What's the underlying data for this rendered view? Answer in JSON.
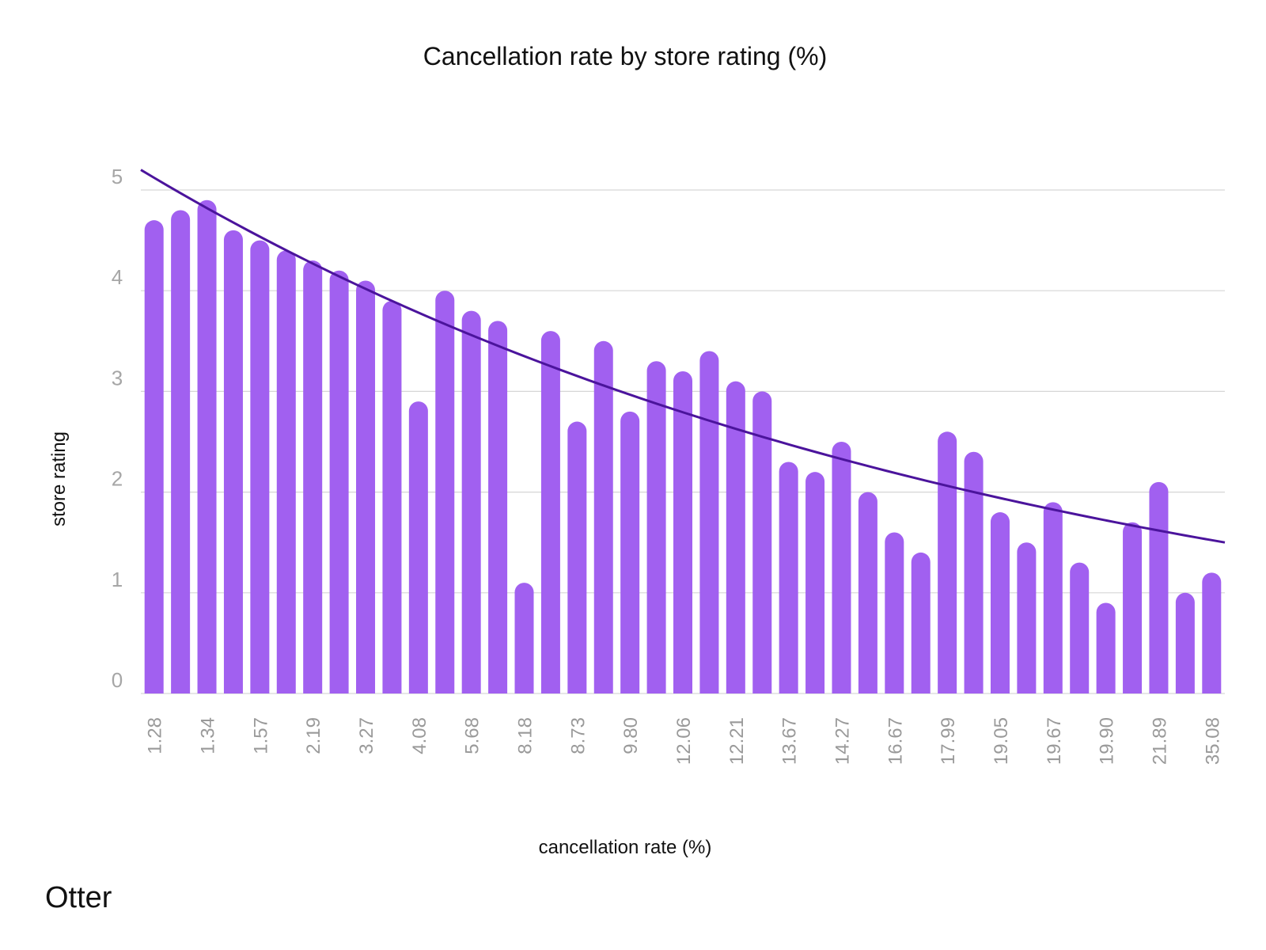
{
  "brand": {
    "logo_text": "Otter"
  },
  "colors": {
    "bar": "#A160F0",
    "trendline": "#4B149C",
    "gridline": "#d6d6d6",
    "axis_tick_text": "#a6a6a6",
    "text": "#111111"
  },
  "chart_data": {
    "type": "bar",
    "title": "Cancellation rate by store rating (%)",
    "xlabel": "cancellation rate (%)",
    "ylabel": "store rating",
    "ylim": [
      0,
      5
    ],
    "y_ticks": [
      "0",
      "1",
      "2",
      "3",
      "4",
      "5"
    ],
    "grid": true,
    "categories": [
      "1.28",
      "",
      "1.34",
      "",
      "1.57",
      "",
      "2.19",
      "",
      "3.27",
      "",
      "4.08",
      "",
      "5.68",
      "",
      "8.18",
      "",
      "8.73",
      "",
      "9.80",
      "",
      "12.06",
      "",
      "12.21",
      "",
      "13.67",
      "",
      "14.27",
      "",
      "16.67",
      "",
      "17.99",
      "",
      "19.05",
      "",
      "19.67",
      "",
      "19.90",
      "",
      "21.89",
      "",
      "35.08"
    ],
    "series": [
      {
        "name": "store rating",
        "values": [
          4.7,
          4.8,
          4.9,
          4.6,
          4.5,
          4.4,
          4.3,
          4.2,
          4.1,
          3.9,
          2.9,
          4.0,
          3.8,
          3.7,
          1.1,
          3.6,
          2.7,
          3.5,
          2.8,
          3.3,
          3.2,
          3.4,
          3.1,
          3.0,
          2.3,
          2.2,
          2.5,
          2.0,
          1.6,
          1.4,
          2.6,
          2.4,
          1.8,
          1.5,
          1.9,
          1.3,
          0.9,
          1.7,
          2.1,
          1.0,
          1.2
        ]
      }
    ],
    "trendline": {
      "type": "exponential",
      "start_value": 5.2,
      "end_value": 1.5
    }
  }
}
